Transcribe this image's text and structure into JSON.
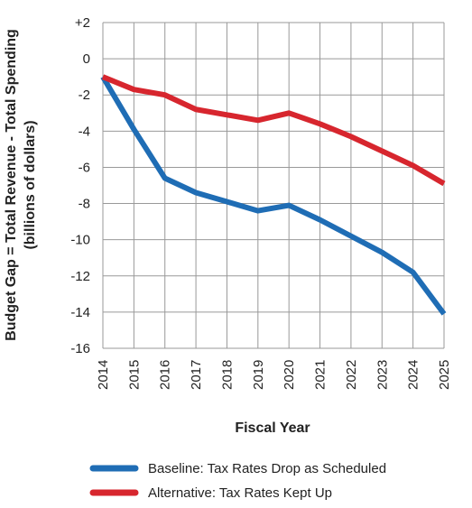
{
  "chart_data": {
    "type": "line",
    "ylabel": [
      "Budget Gap = Total Revenue - Total Spending",
      "(billions of dollars)"
    ],
    "xlabel": "Fiscal Year",
    "categories": [
      "2014",
      "2015",
      "2016",
      "2017",
      "2018",
      "2019",
      "2020",
      "2021",
      "2022",
      "2023",
      "2024",
      "2025"
    ],
    "series": [
      {
        "name": "Baseline: Tax Rates Drop as Scheduled",
        "color": "#1f6db5",
        "values": [
          -1.0,
          -3.9,
          -6.6,
          -7.4,
          -7.9,
          -8.4,
          -8.1,
          -8.9,
          -9.8,
          -10.7,
          -11.8,
          -14.1
        ]
      },
      {
        "name": "Alternative: Tax Rates Kept Up",
        "color": "#d7262e",
        "values": [
          -1.0,
          -1.7,
          -2.0,
          -2.8,
          -3.1,
          -3.4,
          -3.0,
          -3.6,
          -4.3,
          -5.1,
          -5.9,
          -6.9
        ]
      }
    ],
    "ylim": [
      -16,
      2
    ],
    "yticks": [
      -16,
      -14,
      -12,
      -10,
      -8,
      -6,
      -4,
      -2,
      0,
      {
        "value": 2,
        "label": "+2"
      }
    ],
    "grid": true
  }
}
